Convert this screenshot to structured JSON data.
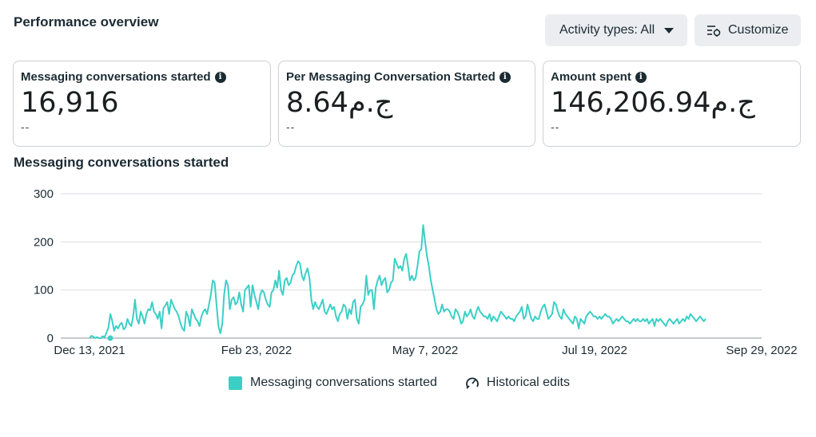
{
  "header": {
    "title": "Performance overview",
    "activity_button": "Activity types: All",
    "customize_button": "Customize"
  },
  "cards": [
    {
      "label": "Messaging conversations started",
      "value": "16,916",
      "sub": "--"
    },
    {
      "label": "Per Messaging Conversation Started",
      "value": "8.64ج.م",
      "sub": "--"
    },
    {
      "label": "Amount spent",
      "value": "146,206.94ج.م",
      "sub": "--"
    }
  ],
  "chart_title": "Messaging conversations started",
  "legend": {
    "series_label": "Messaging conversations started",
    "historical_label": "Historical edits"
  },
  "colors": {
    "series": "#3bcfc6",
    "grid": "#dadde1",
    "text": "#1c2b33"
  },
  "chart_data": {
    "type": "line",
    "x_ticks": [
      "Dec 13, 2021",
      "Feb 23, 2022",
      "May 7, 2022",
      "Jul 19, 2022",
      "Sep 29, 2022"
    ],
    "y_ticks": [
      0,
      100,
      200,
      300
    ],
    "ylim": [
      0,
      300
    ],
    "x_start_label": "Dec 13, 2021",
    "x_end_label": "Sep 29, 2022",
    "series": [
      {
        "name": "Messaging conversations started",
        "x_start": "Dec 13, 2021",
        "values": [
          0,
          5,
          3,
          0,
          2,
          0,
          0,
          4,
          2,
          12,
          22,
          50,
          35,
          15,
          25,
          20,
          28,
          32,
          18,
          22,
          40,
          30,
          25,
          45,
          80,
          40,
          30,
          55,
          45,
          30,
          50,
          60,
          58,
          75,
          55,
          50,
          40,
          55,
          20,
          62,
          68,
          75,
          50,
          80,
          70,
          60,
          55,
          45,
          30,
          20,
          15,
          55,
          45,
          25,
          60,
          50,
          40,
          35,
          25,
          45,
          55,
          60,
          50,
          70,
          90,
          120,
          115,
          70,
          25,
          10,
          30,
          90,
          120,
          110,
          60,
          80,
          85,
          70,
          75,
          95,
          70,
          55,
          100,
          105,
          110,
          65,
          110,
          90,
          75,
          60,
          90,
          100,
          95,
          80,
          70,
          65,
          95,
          100,
          120,
          105,
          140,
          100,
          90,
          120,
          125,
          110,
          115,
          130,
          135,
          150,
          160,
          155,
          130,
          120,
          135,
          145,
          125,
          80,
          60,
          75,
          65,
          60,
          70,
          80,
          55,
          50,
          60,
          70,
          60,
          65,
          45,
          35,
          50,
          55,
          70,
          65,
          40,
          60,
          50,
          75,
          80,
          40,
          30,
          65,
          70,
          80,
          130,
          90,
          100,
          100,
          60,
          105,
          120,
          130,
          110,
          120,
          125,
          95,
          100,
          115,
          120,
          165,
          155,
          145,
          150,
          140,
          165,
          175,
          150,
          120,
          130,
          120,
          125,
          150,
          180,
          185,
          235,
          200,
          170,
          150,
          120,
          100,
          80,
          60,
          50,
          55,
          70,
          55,
          60,
          60,
          55,
          45,
          40,
          60,
          55,
          45,
          30,
          35,
          55,
          45,
          50,
          60,
          45,
          40,
          55,
          65,
          55,
          50,
          45,
          45,
          40,
          50,
          35,
          45,
          40,
          35,
          45,
          55,
          50,
          45,
          40,
          45,
          40,
          40,
          35,
          45,
          50,
          55,
          65,
          40,
          45,
          70,
          55,
          40,
          35,
          45,
          40,
          40,
          55,
          65,
          70,
          55,
          40,
          45,
          50,
          75,
          70,
          55,
          45,
          40,
          60,
          50,
          45,
          40,
          35,
          30,
          45,
          40,
          20,
          40,
          35,
          30,
          45,
          50,
          55,
          50,
          45,
          45,
          40,
          45,
          40,
          45,
          50,
          45,
          45,
          40,
          30,
          35,
          40,
          35,
          40,
          45,
          40,
          35,
          35,
          30,
          35,
          40,
          35,
          40,
          35,
          35,
          40,
          35,
          40,
          30,
          35,
          40,
          25,
          40,
          35,
          40,
          35,
          30,
          25,
          35,
          40,
          35,
          30,
          35,
          40,
          30,
          35,
          40,
          35,
          45,
          40,
          50,
          45,
          40,
          35,
          40,
          45,
          40,
          35,
          40
        ]
      }
    ]
  }
}
